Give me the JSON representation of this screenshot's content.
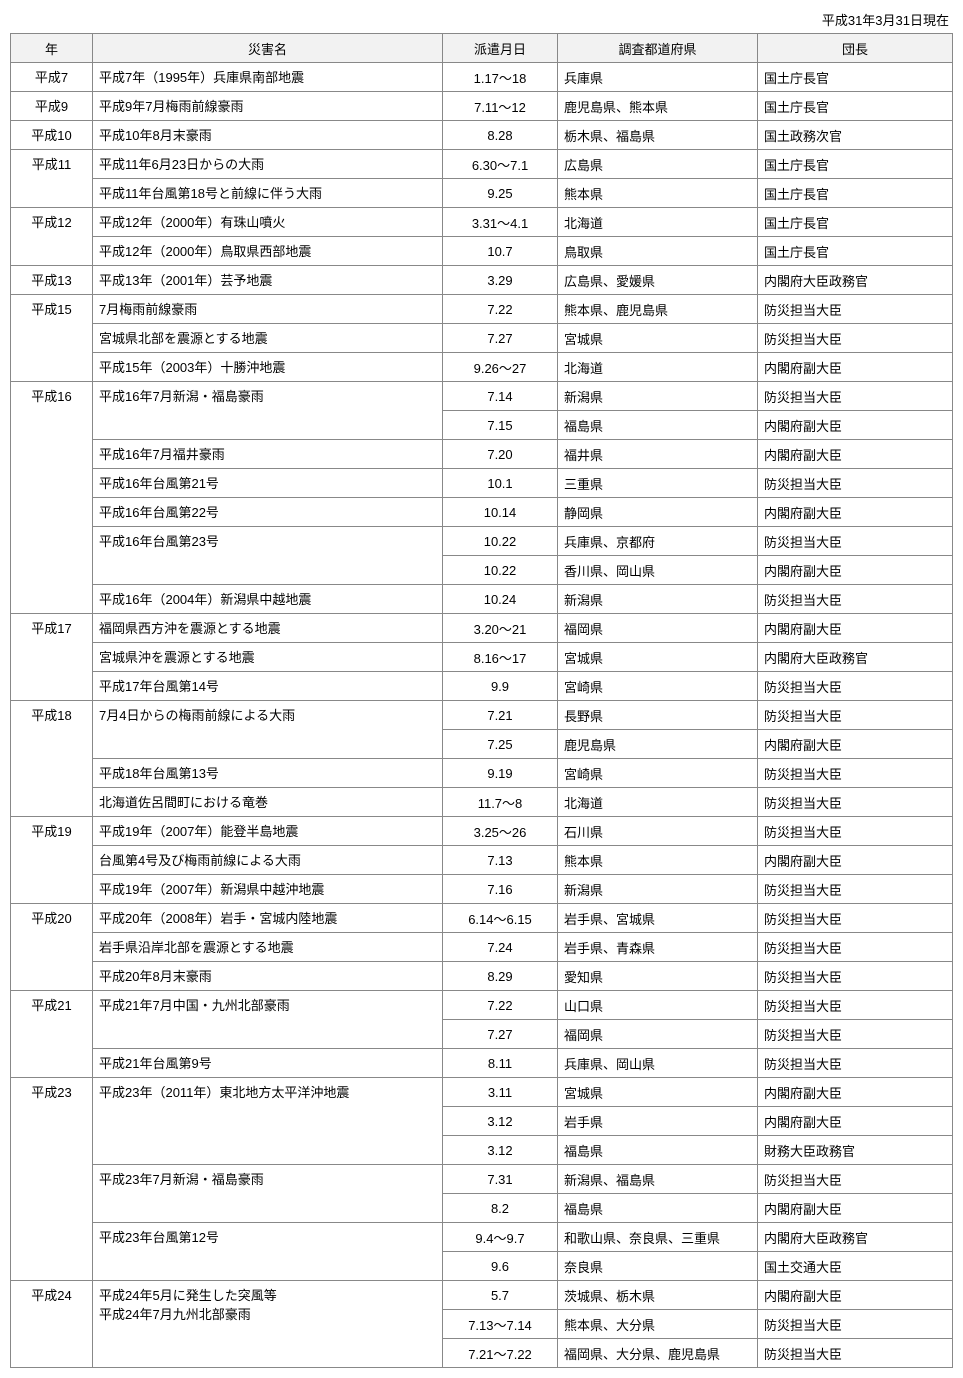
{
  "as_of": "平成31年3月31日現在",
  "columns": [
    "年",
    "災害名",
    "派遣月日",
    "調査都道府県",
    "団長"
  ],
  "rows": [
    {
      "year": "平成7",
      "year_rs": 1,
      "name": "平成7年（1995年）兵庫県南部地震",
      "name_rs": 1,
      "date": "1.17～18",
      "pref": "兵庫県",
      "chief": "国土庁長官"
    },
    {
      "year": "平成9",
      "year_rs": 1,
      "name": "平成9年7月梅雨前線豪雨",
      "name_rs": 1,
      "date": "7.11～12",
      "pref": "鹿児島県、熊本県",
      "chief": "国土庁長官"
    },
    {
      "year": "平成10",
      "year_rs": 1,
      "name": "平成10年8月末豪雨",
      "name_rs": 1,
      "date": "8.28",
      "pref": "栃木県、福島県",
      "chief": "国土政務次官"
    },
    {
      "year": "平成11",
      "year_rs": 2,
      "name": "平成11年6月23日からの大雨",
      "name_rs": 1,
      "date": "6.30～7.1",
      "pref": "広島県",
      "chief": "国土庁長官"
    },
    {
      "name": "平成11年台風第18号と前線に伴う大雨",
      "name_rs": 1,
      "date": "9.25",
      "pref": "熊本県",
      "chief": "国土庁長官"
    },
    {
      "year": "平成12",
      "year_rs": 2,
      "name": "平成12年（2000年）有珠山噴火",
      "name_rs": 1,
      "date": "3.31～4.1",
      "pref": "北海道",
      "chief": "国土庁長官"
    },
    {
      "name": "平成12年（2000年）鳥取県西部地震",
      "name_rs": 1,
      "date": "10.7",
      "pref": "鳥取県",
      "chief": "国土庁長官"
    },
    {
      "year": "平成13",
      "year_rs": 1,
      "name": "平成13年（2001年）芸予地震",
      "name_rs": 1,
      "date": "3.29",
      "pref": "広島県、愛媛県",
      "chief": "内閣府大臣政務官"
    },
    {
      "year": "平成15",
      "year_rs": 3,
      "name": "7月梅雨前線豪雨",
      "name_rs": 1,
      "date": "7.22",
      "pref": "熊本県、鹿児島県",
      "chief": "防災担当大臣"
    },
    {
      "name": "宮城県北部を震源とする地震",
      "name_rs": 1,
      "date": "7.27",
      "pref": "宮城県",
      "chief": "防災担当大臣"
    },
    {
      "name": "平成15年（2003年）十勝沖地震",
      "name_rs": 1,
      "date": "9.26～27",
      "pref": "北海道",
      "chief": "内閣府副大臣"
    },
    {
      "year": "平成16",
      "year_rs": 8,
      "name": "平成16年7月新潟・福島豪雨",
      "name_rs": 2,
      "date": "7.14",
      "pref": "新潟県",
      "chief": "防災担当大臣"
    },
    {
      "date": "7.15",
      "pref": "福島県",
      "chief": "内閣府副大臣"
    },
    {
      "name": "平成16年7月福井豪雨",
      "name_rs": 1,
      "date": "7.20",
      "pref": "福井県",
      "chief": "内閣府副大臣"
    },
    {
      "name": "平成16年台風第21号",
      "name_rs": 1,
      "date": "10.1",
      "pref": "三重県",
      "chief": "防災担当大臣"
    },
    {
      "name": "平成16年台風第22号",
      "name_rs": 1,
      "date": "10.14",
      "pref": "静岡県",
      "chief": "内閣府副大臣"
    },
    {
      "name": "平成16年台風第23号",
      "name_rs": 2,
      "date": "10.22",
      "pref": "兵庫県、京都府",
      "chief": "防災担当大臣"
    },
    {
      "date": "10.22",
      "pref": "香川県、岡山県",
      "chief": "内閣府副大臣"
    },
    {
      "name": "平成16年（2004年）新潟県中越地震",
      "name_rs": 1,
      "date": "10.24",
      "pref": "新潟県",
      "chief": "防災担当大臣"
    },
    {
      "year": "平成17",
      "year_rs": 3,
      "name": "福岡県西方沖を震源とする地震",
      "name_rs": 1,
      "date": "3.20～21",
      "pref": "福岡県",
      "chief": "内閣府副大臣"
    },
    {
      "name": "宮城県沖を震源とする地震",
      "name_rs": 1,
      "date": "8.16～17",
      "pref": "宮城県",
      "chief": "内閣府大臣政務官"
    },
    {
      "name": "平成17年台風第14号",
      "name_rs": 1,
      "date": "9.9",
      "pref": "宮崎県",
      "chief": "防災担当大臣"
    },
    {
      "year": "平成18",
      "year_rs": 4,
      "name": "7月4日からの梅雨前線による大雨",
      "name_rs": 2,
      "date": "7.21",
      "pref": "長野県",
      "chief": "防災担当大臣"
    },
    {
      "date": "7.25",
      "pref": "鹿児島県",
      "chief": "内閣府副大臣"
    },
    {
      "name": "平成18年台風第13号",
      "name_rs": 1,
      "date": "9.19",
      "pref": "宮崎県",
      "chief": "防災担当大臣"
    },
    {
      "name": "北海道佐呂間町における竜巻",
      "name_rs": 1,
      "date": "11.7～8",
      "pref": "北海道",
      "chief": "防災担当大臣"
    },
    {
      "year": "平成19",
      "year_rs": 3,
      "name": "平成19年（2007年）能登半島地震",
      "name_rs": 1,
      "date": "3.25～26",
      "pref": "石川県",
      "chief": "防災担当大臣"
    },
    {
      "name": "台風第4号及び梅雨前線による大雨",
      "name_rs": 1,
      "date": "7.13",
      "pref": "熊本県",
      "chief": "内閣府副大臣"
    },
    {
      "name": "平成19年（2007年）新潟県中越沖地震",
      "name_rs": 1,
      "date": "7.16",
      "pref": "新潟県",
      "chief": "防災担当大臣"
    },
    {
      "year": "平成20",
      "year_rs": 3,
      "name": "平成20年（2008年）岩手・宮城内陸地震",
      "name_rs": 1,
      "date": "6.14～6.15",
      "pref": "岩手県、宮城県",
      "chief": "防災担当大臣"
    },
    {
      "name": "岩手県沿岸北部を震源とする地震",
      "name_rs": 1,
      "date": "7.24",
      "pref": "岩手県、青森県",
      "chief": "防災担当大臣"
    },
    {
      "name": "平成20年8月末豪雨",
      "name_rs": 1,
      "date": "8.29",
      "pref": "愛知県",
      "chief": "防災担当大臣"
    },
    {
      "year": "平成21",
      "year_rs": 3,
      "name": "平成21年7月中国・九州北部豪雨",
      "name_rs": 2,
      "date": "7.22",
      "pref": "山口県",
      "chief": "防災担当大臣"
    },
    {
      "date": "7.27",
      "pref": "福岡県",
      "chief": "防災担当大臣"
    },
    {
      "name": "平成21年台風第9号",
      "name_rs": 1,
      "date": "8.11",
      "pref": "兵庫県、岡山県",
      "chief": "防災担当大臣"
    },
    {
      "year": "平成23",
      "year_rs": 7,
      "name": "平成23年（2011年）東北地方太平洋沖地震",
      "name_rs": 3,
      "date": "3.11",
      "pref": "宮城県",
      "chief": "内閣府副大臣"
    },
    {
      "date": "3.12",
      "pref": "岩手県",
      "chief": "内閣府副大臣"
    },
    {
      "date": "3.12",
      "pref": "福島県",
      "chief": "財務大臣政務官"
    },
    {
      "name": "平成23年7月新潟・福島豪雨",
      "name_rs": 2,
      "date": "7.31",
      "pref": "新潟県、福島県",
      "chief": "防災担当大臣"
    },
    {
      "date": "8.2",
      "pref": "福島県",
      "chief": "内閣府副大臣"
    },
    {
      "name": "平成23年台風第12号",
      "name_rs": 2,
      "date": "9.4～9.7",
      "pref": "和歌山県、奈良県、三重県",
      "chief": "内閣府大臣政務官"
    },
    {
      "date": "9.6",
      "pref": "奈良県",
      "chief": "国土交通大臣"
    },
    {
      "year": "平成24",
      "year_rs": 3,
      "name": "平成24年5月に発生した突風等\n平成24年7月九州北部豪雨",
      "name_rs": 3,
      "date": "5.7",
      "pref": "茨城県、栃木県",
      "chief": "内閣府副大臣"
    },
    {
      "date": "7.13～7.14",
      "pref": "熊本県、大分県",
      "chief": "防災担当大臣"
    },
    {
      "date": "7.21～7.22",
      "pref": "福岡県、大分県、鹿児島県",
      "chief": "防災担当大臣"
    }
  ]
}
